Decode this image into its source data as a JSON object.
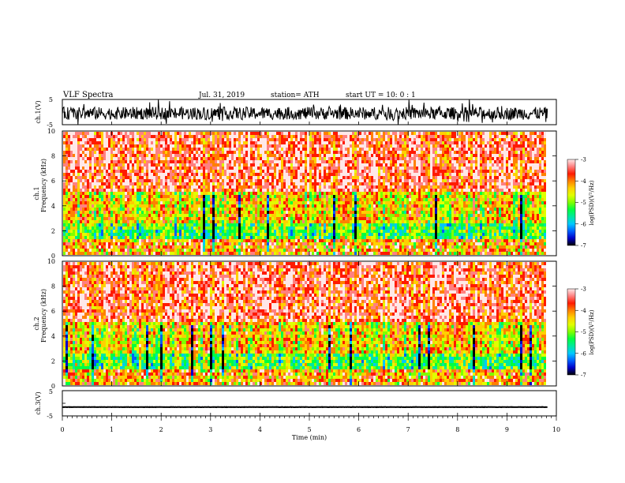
{
  "header": {
    "title": "VLF  Spectra",
    "date": "Jul.  31,  2019",
    "station": "station= ATH",
    "start": "start  UT  =     10: 0   : 1"
  },
  "colors": {
    "scale": [
      "#000000",
      "#0000c8",
      "#0060ff",
      "#00c8ff",
      "#00e8a0",
      "#00ff40",
      "#80ff00",
      "#e0ff00",
      "#ffd000",
      "#ff8000",
      "#ff1a00",
      "#ff8080",
      "#ffe8e8"
    ]
  },
  "chart_data": [
    {
      "id": "ch1-waveform",
      "type": "line",
      "ylabel": "ch.1(V)",
      "ylim": [
        -5,
        5
      ],
      "ytick_labels": [
        "5",
        "-5"
      ],
      "x_range_min": [
        0,
        9.82
      ],
      "approx_center_v": -0.5,
      "approx_amplitude_v": 2.5
    },
    {
      "id": "ch1-spectrogram",
      "type": "heatmap",
      "ylabel": "Frequency  (kHz)",
      "channel_label": "ch.1",
      "ylim": [
        0,
        10
      ],
      "ytick_labels": [
        "0",
        "2",
        "4",
        "6",
        "8",
        "10"
      ],
      "x_range_min": [
        0,
        9.82
      ],
      "colorbar": {
        "label": "log(PSD)(V²/Hz)",
        "range": [
          -7,
          -3
        ],
        "tick_labels": [
          "-3",
          "-4",
          "-5",
          "-6",
          "-7"
        ]
      }
    },
    {
      "id": "ch2-spectrogram",
      "type": "heatmap",
      "ylabel": "Frequency  (kHz)",
      "channel_label": "ch.2",
      "ylim": [
        0,
        10
      ],
      "ytick_labels": [
        "0",
        "2",
        "4",
        "6",
        "8",
        "10"
      ],
      "x_range_min": [
        0,
        9.82
      ],
      "colorbar": {
        "label": "log(PSD)(V²/Hz)",
        "range": [
          -7,
          -3
        ],
        "tick_labels": [
          "-3",
          "-4",
          "-5",
          "-6",
          "-7"
        ]
      }
    },
    {
      "id": "ch3-waveform",
      "type": "line",
      "ylabel": "ch.3(V)",
      "ylim": [
        -5,
        5
      ],
      "ytick_labels": [
        "5",
        "-5"
      ],
      "x_range_min": [
        0,
        9.82
      ],
      "approx_center_v": -1.5,
      "approx_amplitude_v": 0.2
    }
  ],
  "x_axis": {
    "label": "Time  (min)",
    "range": [
      0,
      10
    ],
    "tick_labels": [
      "0",
      "1",
      "2",
      "3",
      "4",
      "5",
      "6",
      "7",
      "8",
      "9",
      "10"
    ]
  }
}
